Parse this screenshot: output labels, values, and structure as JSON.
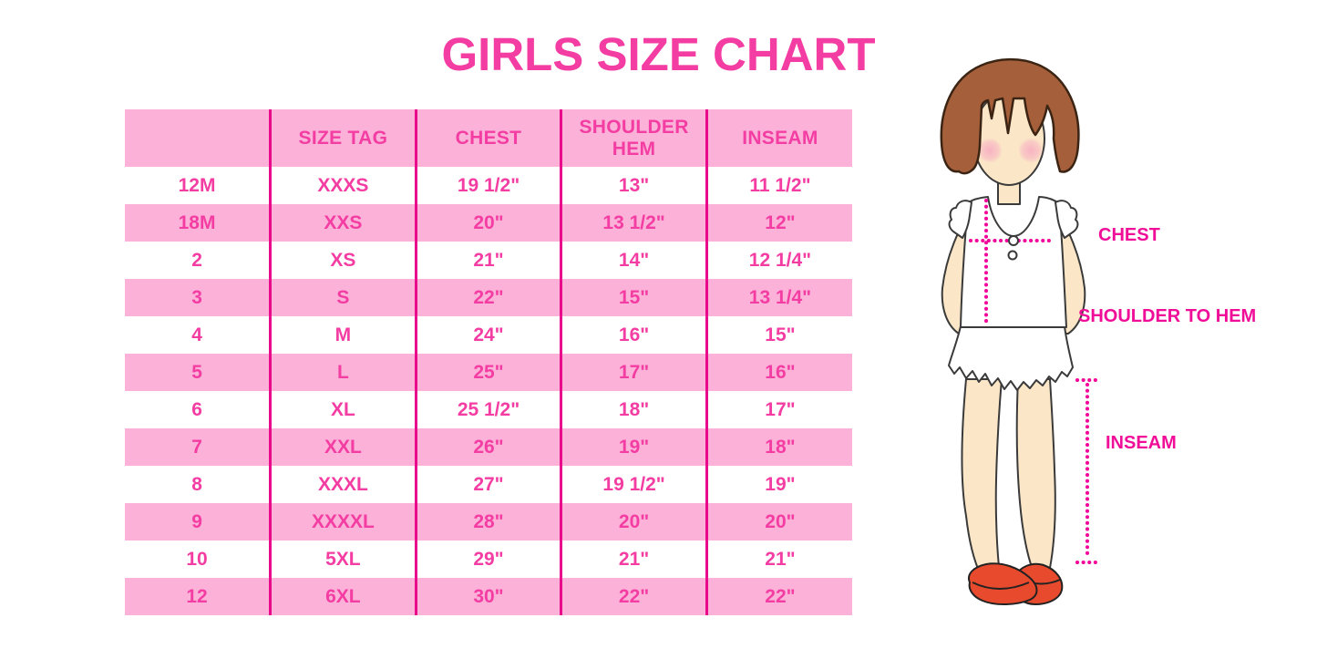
{
  "chart_data": {
    "type": "table",
    "title": "GIRLS SIZE CHART",
    "headers": [
      "",
      "SIZE TAG",
      "CHEST",
      "SHOULDER HEM",
      "INSEAM"
    ],
    "rows": [
      [
        "12M",
        "XXXS",
        "19 1/2\"",
        "13\"",
        "11 1/2\""
      ],
      [
        "18M",
        "XXS",
        "20\"",
        "13 1/2\"",
        "12\""
      ],
      [
        "2",
        "XS",
        "21\"",
        "14\"",
        "12 1/4\""
      ],
      [
        "3",
        "S",
        "22\"",
        "15\"",
        "13 1/4\""
      ],
      [
        "4",
        "M",
        "24\"",
        "16\"",
        "15\""
      ],
      [
        "5",
        "L",
        "25\"",
        "17\"",
        "16\""
      ],
      [
        "6",
        "XL",
        "25 1/2\"",
        "18\"",
        "17\""
      ],
      [
        "7",
        "XXL",
        "26\"",
        "19\"",
        "18\""
      ],
      [
        "8",
        "XXXL",
        "27\"",
        "19 1/2\"",
        "19\""
      ],
      [
        "9",
        "XXXXL",
        "28\"",
        "20\"",
        "20\""
      ],
      [
        "10",
        "5XL",
        "29\"",
        "21\"",
        "21\""
      ],
      [
        "12",
        "6XL",
        "30\"",
        "22\"",
        "22\""
      ]
    ],
    "layout": {
      "row_striping": "white/pink alternating",
      "column_dividers": "vertical magenta lines"
    }
  },
  "figure": {
    "labels": {
      "chest": "CHEST",
      "shoulder_to_hem": "SHOULDER TO HEM",
      "inseam": "INSEAM"
    }
  },
  "colors": {
    "row_pink": "#FBB1D8",
    "text_pink": "#F43DA2",
    "label_pink": "#F00D98",
    "table_line": "#E9098B",
    "dot_pink": "#F2059B",
    "hair": "#A5603B",
    "hair_outline": "#3B2413",
    "skin": "#FBE7C7",
    "body_outline": "#3A3A3A",
    "blush": "#F7A9C2",
    "shoe_red": "#E84A2D",
    "shoe_outline": "#222222"
  }
}
